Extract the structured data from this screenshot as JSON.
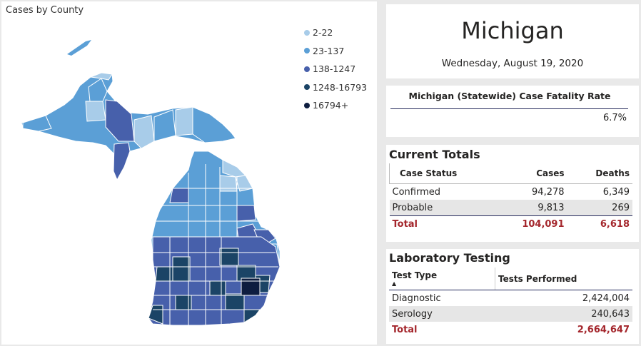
{
  "map": {
    "title": "Cases by County",
    "legend": [
      {
        "label": "2-22",
        "color": "#a8cce9"
      },
      {
        "label": "23-137",
        "color": "#5b9fd6"
      },
      {
        "label": "138-1247",
        "color": "#4760ab"
      },
      {
        "label": "1248-16793",
        "color": "#1b4466"
      },
      {
        "label": "16794+",
        "color": "#0e1d3f"
      }
    ]
  },
  "header": {
    "state": "Michigan",
    "date": "Wednesday, August 19, 2020"
  },
  "fatality": {
    "title": "Michigan (Statewide) Case Fatality Rate",
    "value": "6.7%"
  },
  "totals": {
    "title": "Current Totals",
    "columns": [
      "Case Status",
      "Cases",
      "Deaths"
    ],
    "rows": [
      {
        "status": "Confirmed",
        "cases": "94,278",
        "deaths": "6,349"
      },
      {
        "status": "Probable",
        "cases": "9,813",
        "deaths": "269"
      }
    ],
    "total": {
      "status": "Total",
      "cases": "104,091",
      "deaths": "6,618"
    }
  },
  "lab": {
    "title": "Laboratory Testing",
    "columns": [
      "Test Type",
      "Tests Performed"
    ],
    "sort_indicator": "▲",
    "rows": [
      {
        "type": "Diagnostic",
        "tests": "2,424,004"
      },
      {
        "type": "Serology",
        "tests": "240,643"
      }
    ],
    "total": {
      "type": "Total",
      "tests": "2,664,647"
    }
  },
  "colors": {
    "accent_red": "#a4262c",
    "header_rule": "#252a5c",
    "card_bg": "#ffffff",
    "page_bg": "#e9e9e9"
  }
}
